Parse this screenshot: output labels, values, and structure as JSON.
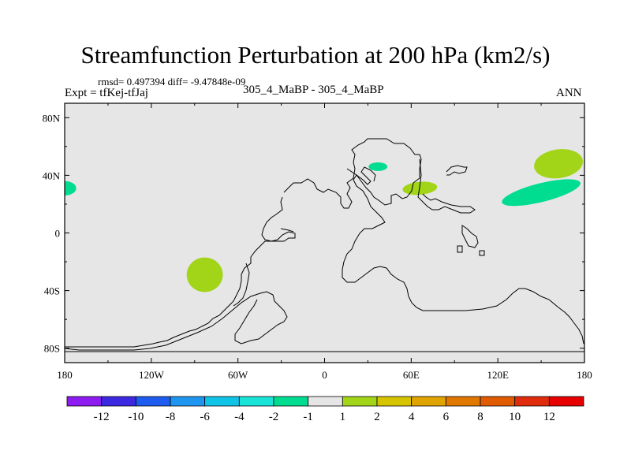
{
  "header": {
    "title": "Streamfunction Perturbation at 200 hPa (km2/s)",
    "stats": "rmsd= 0.497394 diff= -9.47848e-09",
    "experiment": "Expt = tfKej-tfJaj",
    "case_label": "305_4_MaBP - 305_4_MaBP",
    "season": "ANN"
  },
  "map": {
    "projection": "cylindrical equidistant",
    "lon_range": [
      -180,
      180
    ],
    "lat_range": [
      -90,
      90
    ],
    "background_color": "#e6e6e6",
    "x_ticks": [
      {
        "lon": -180,
        "label": "180"
      },
      {
        "lon": -120,
        "label": "120W"
      },
      {
        "lon": -60,
        "label": "60W"
      },
      {
        "lon": 0,
        "label": "0"
      },
      {
        "lon": 60,
        "label": "60E"
      },
      {
        "lon": 120,
        "label": "120E"
      },
      {
        "lon": 180,
        "label": "180"
      }
    ],
    "y_ticks": [
      {
        "lat": 80,
        "label": "80N"
      },
      {
        "lat": 40,
        "label": "40N"
      },
      {
        "lat": 0,
        "label": "0"
      },
      {
        "lat": -40,
        "label": "40S"
      },
      {
        "lat": -80,
        "label": "80S"
      }
    ],
    "anomalies": [
      {
        "lon": 162,
        "lat": 48,
        "rx": 17,
        "ry": 10,
        "rot": -8,
        "color": "#a2d418",
        "level": "1 to 2"
      },
      {
        "lon": 150,
        "lat": 28,
        "rx": 28,
        "ry": 6.5,
        "rot": -14,
        "color": "#00dc90",
        "level": "-2 to -1"
      },
      {
        "lon": 37,
        "lat": 46,
        "rx": 6.5,
        "ry": 3,
        "rot": 0,
        "color": "#00dc90",
        "level": "-2 to -1"
      },
      {
        "lon": 66,
        "lat": 31,
        "rx": 12,
        "ry": 4.5,
        "rot": -5,
        "color": "#a2d418",
        "level": "1 to 2"
      },
      {
        "lon": -83,
        "lat": -29,
        "rx": 12.5,
        "ry": 12,
        "rot": 0,
        "color": "#a2d418",
        "level": "1 to 2"
      },
      {
        "lon": -180,
        "lat": 31,
        "rx": 8,
        "ry": 5,
        "rot": 0,
        "color": "#00dc90",
        "level": "-2 to -1"
      }
    ]
  },
  "colorbar": {
    "colors": [
      "#8c1cf0",
      "#3c28e0",
      "#1e5cf0",
      "#1e96f0",
      "#10c4e8",
      "#1ae4d8",
      "#00dc90",
      "#e6e6e6",
      "#a2d418",
      "#d6c400",
      "#e0a400",
      "#e07800",
      "#e05a00",
      "#e02c0c",
      "#e60000"
    ],
    "labels": [
      "-12",
      "-10",
      "-8",
      "-6",
      "-4",
      "-2",
      "-1",
      "1",
      "2",
      "4",
      "6",
      "8",
      "10",
      "12"
    ]
  }
}
